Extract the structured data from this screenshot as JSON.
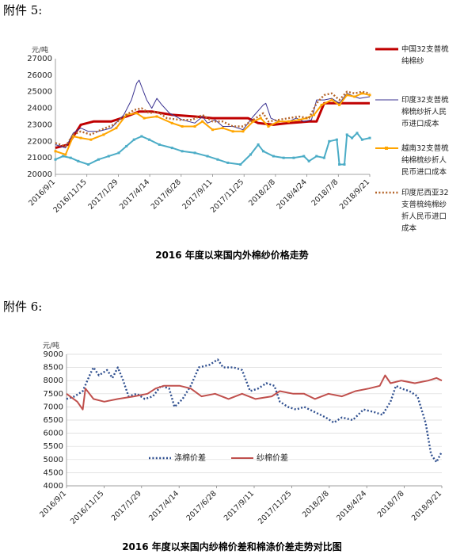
{
  "headings": {
    "attach5": "附件 5:",
    "attach6": "附件 6:"
  },
  "captions": {
    "fig1": "2016 年度以来国内外棉纱价格走势",
    "fig2": "2016 年度以来国内纱棉价差和棉涤价差走势对比图"
  },
  "chart_data": [
    {
      "type": "line",
      "title": "2016 年度以来国内外棉纱价格走势",
      "ylabel": "元/吨",
      "ylim": [
        20000,
        27000
      ],
      "yticks": [
        20000,
        21000,
        22000,
        23000,
        24000,
        25000,
        26000,
        27000
      ],
      "xlabels": [
        "2016/9/1",
        "2016/11/15",
        "2017/1/29",
        "2017/4/14",
        "2017/6/28",
        "2017/9/11",
        "2017/11/25",
        "2018/2/8",
        "2018/4/24",
        "2018/7/8",
        "2018/9/21"
      ],
      "legend_position": "right",
      "series": [
        {
          "name": "中国32支普梳纯棉纱",
          "color": "#c00000",
          "style": "solid-thick",
          "points": [
            [
              0,
              21600
            ],
            [
              5,
              21800
            ],
            [
              10,
              23000
            ],
            [
              15,
              23200
            ],
            [
              22,
              23200
            ],
            [
              28,
              23500
            ],
            [
              33,
              23800
            ],
            [
              38,
              23800
            ],
            [
              46,
              23600
            ],
            [
              55,
              23500
            ],
            [
              62,
              23400
            ],
            [
              70,
              23400
            ],
            [
              76,
              23400
            ],
            [
              80,
              23100
            ],
            [
              86,
              23000
            ],
            [
              92,
              23100
            ],
            [
              100,
              23200
            ],
            [
              103,
              23200
            ],
            [
              106,
              24300
            ],
            [
              110,
              24300
            ],
            [
              118,
              24300
            ],
            [
              124,
              24300
            ]
          ]
        },
        {
          "name": "印度32支普梳纯棉梳纱折人民币进口成本",
          "color": "#3b3391",
          "style": "solid-thin",
          "points": [
            [
              0,
              21800
            ],
            [
              4,
              21600
            ],
            [
              7,
              22500
            ],
            [
              10,
              22800
            ],
            [
              13,
              22600
            ],
            [
              17,
              22600
            ],
            [
              22,
              22800
            ],
            [
              27,
              23600
            ],
            [
              30,
              24500
            ],
            [
              32,
              25500
            ],
            [
              33,
              25700
            ],
            [
              34,
              25300
            ],
            [
              36,
              24500
            ],
            [
              38,
              24000
            ],
            [
              40,
              24600
            ],
            [
              42,
              24200
            ],
            [
              45,
              23700
            ],
            [
              50,
              23300
            ],
            [
              55,
              23100
            ],
            [
              58,
              23500
            ],
            [
              60,
              23100
            ],
            [
              63,
              23300
            ],
            [
              66,
              22900
            ],
            [
              70,
              22900
            ],
            [
              74,
              22700
            ],
            [
              78,
              23500
            ],
            [
              82,
              24200
            ],
            [
              83,
              24300
            ],
            [
              85,
              23400
            ],
            [
              88,
              23200
            ],
            [
              92,
              23200
            ],
            [
              95,
              23400
            ],
            [
              98,
              23200
            ],
            [
              101,
              23300
            ],
            [
              103,
              24500
            ],
            [
              106,
              24500
            ],
            [
              109,
              24600
            ],
            [
              112,
              24300
            ],
            [
              115,
              24900
            ],
            [
              118,
              24700
            ],
            [
              120,
              24600
            ],
            [
              124,
              24700
            ]
          ]
        },
        {
          "name": "越南32支普梳纯棉梳纱折人民币进口成本",
          "color": "#ffa500",
          "style": "solid-markers",
          "points": [
            [
              0,
              21400
            ],
            [
              4,
              21200
            ],
            [
              7,
              22300
            ],
            [
              10,
              22200
            ],
            [
              14,
              22100
            ],
            [
              19,
              22400
            ],
            [
              24,
              22800
            ],
            [
              28,
              23600
            ],
            [
              32,
              23700
            ],
            [
              35,
              23400
            ],
            [
              40,
              23500
            ],
            [
              46,
              23100
            ],
            [
              50,
              22900
            ],
            [
              55,
              22900
            ],
            [
              58,
              23200
            ],
            [
              62,
              22700
            ],
            [
              66,
              22800
            ],
            [
              70,
              22600
            ],
            [
              74,
              22600
            ],
            [
              78,
              23200
            ],
            [
              81,
              23400
            ],
            [
              84,
              22900
            ],
            [
              88,
              23200
            ],
            [
              92,
              23200
            ],
            [
              96,
              23300
            ],
            [
              99,
              23400
            ],
            [
              102,
              23600
            ],
            [
              105,
              24200
            ],
            [
              109,
              24500
            ],
            [
              112,
              24200
            ],
            [
              115,
              24800
            ],
            [
              118,
              24700
            ],
            [
              121,
              24900
            ],
            [
              124,
              24800
            ]
          ]
        },
        {
          "name": "印度尼西亚32支普梳纯棉纱折人民币进口成本",
          "color": "#b5652a",
          "style": "dotted",
          "points": [
            [
              0,
              21900
            ],
            [
              4,
              21700
            ],
            [
              7,
              22400
            ],
            [
              10,
              22600
            ],
            [
              14,
              22400
            ],
            [
              18,
              22700
            ],
            [
              23,
              23000
            ],
            [
              27,
              23500
            ],
            [
              31,
              23900
            ],
            [
              34,
              24000
            ],
            [
              37,
              23700
            ],
            [
              40,
              23800
            ],
            [
              44,
              23400
            ],
            [
              49,
              23300
            ],
            [
              54,
              23300
            ],
            [
              58,
              23600
            ],
            [
              62,
              23200
            ],
            [
              66,
              23200
            ],
            [
              70,
              22900
            ],
            [
              74,
              22900
            ],
            [
              78,
              23300
            ],
            [
              82,
              23700
            ],
            [
              84,
              23200
            ],
            [
              88,
              23300
            ],
            [
              92,
              23400
            ],
            [
              96,
              23500
            ],
            [
              100,
              23400
            ],
            [
              103,
              24300
            ],
            [
              106,
              24800
            ],
            [
              109,
              24900
            ],
            [
              112,
              24500
            ],
            [
              115,
              25000
            ],
            [
              118,
              24900
            ],
            [
              121,
              25000
            ],
            [
              124,
              24900
            ]
          ]
        },
        {
          "name": "",
          "color": "#4bacc6",
          "style": "solid-markers",
          "points": [
            [
              0,
              20900
            ],
            [
              3,
              21100
            ],
            [
              6,
              21000
            ],
            [
              9,
              20800
            ],
            [
              13,
              20600
            ],
            [
              17,
              20900
            ],
            [
              21,
              21100
            ],
            [
              25,
              21300
            ],
            [
              28,
              21700
            ],
            [
              31,
              22100
            ],
            [
              34,
              22300
            ],
            [
              37,
              22100
            ],
            [
              41,
              21800
            ],
            [
              46,
              21600
            ],
            [
              50,
              21400
            ],
            [
              55,
              21300
            ],
            [
              60,
              21100
            ],
            [
              64,
              20900
            ],
            [
              68,
              20700
            ],
            [
              73,
              20600
            ],
            [
              77,
              21200
            ],
            [
              80,
              21800
            ],
            [
              82,
              21400
            ],
            [
              86,
              21100
            ],
            [
              90,
              21000
            ],
            [
              94,
              21000
            ],
            [
              98,
              21100
            ],
            [
              100,
              20800
            ],
            [
              103,
              21100
            ],
            [
              106,
              21000
            ],
            [
              108,
              22000
            ],
            [
              111,
              22100
            ],
            [
              112,
              20600
            ],
            [
              114,
              20600
            ],
            [
              115,
              22400
            ],
            [
              117,
              22200
            ],
            [
              119,
              22500
            ],
            [
              121,
              22100
            ],
            [
              124,
              22200
            ]
          ]
        }
      ]
    },
    {
      "type": "line",
      "title": "2016 年度以来国内纱棉价差和棉涤价差走势对比图",
      "ylabel": "元/吨",
      "ylim": [
        4000,
        9000
      ],
      "yticks": [
        4000,
        4500,
        5000,
        5500,
        6000,
        6500,
        7000,
        7500,
        8000,
        8500,
        9000
      ],
      "xlabels": [
        "2016/9/1",
        "2016/11/15",
        "2017/1/29",
        "2017/4/14",
        "2017/6/28",
        "2017/9/11",
        "2017/11/25",
        "2018/2/8",
        "2018/4/24",
        "2018/7/8",
        "2018/9/21"
      ],
      "legend_position": "bottom-left",
      "series": [
        {
          "name": "涤棉价差",
          "color": "#2f4f8f",
          "style": "dotted",
          "points": [
            [
              0,
              7300
            ],
            [
              3,
              7400
            ],
            [
              6,
              7600
            ],
            [
              9,
              8300
            ],
            [
              10,
              8500
            ],
            [
              12,
              8200
            ],
            [
              15,
              8400
            ],
            [
              17,
              8100
            ],
            [
              19,
              8500
            ],
            [
              21,
              8000
            ],
            [
              23,
              7400
            ],
            [
              26,
              7500
            ],
            [
              29,
              7300
            ],
            [
              32,
              7400
            ],
            [
              35,
              7800
            ],
            [
              38,
              7700
            ],
            [
              40,
              7000
            ],
            [
              43,
              7300
            ],
            [
              46,
              7800
            ],
            [
              49,
              8500
            ],
            [
              53,
              8600
            ],
            [
              56,
              8800
            ],
            [
              58,
              8500
            ],
            [
              62,
              8500
            ],
            [
              65,
              8400
            ],
            [
              68,
              7600
            ],
            [
              71,
              7700
            ],
            [
              74,
              7900
            ],
            [
              77,
              7800
            ],
            [
              79,
              7200
            ],
            [
              82,
              7000
            ],
            [
              85,
              6900
            ],
            [
              88,
              7000
            ],
            [
              92,
              6800
            ],
            [
              96,
              6600
            ],
            [
              99,
              6400
            ],
            [
              102,
              6600
            ],
            [
              106,
              6500
            ],
            [
              110,
              6900
            ],
            [
              114,
              6800
            ],
            [
              117,
              6700
            ],
            [
              120,
              7200
            ],
            [
              122,
              7800
            ],
            [
              124,
              7700
            ],
            [
              127,
              7600
            ],
            [
              130,
              7400
            ],
            [
              133,
              6400
            ],
            [
              135,
              5200
            ],
            [
              137,
              4900
            ],
            [
              139,
              5300
            ]
          ]
        },
        {
          "name": "纱棉价差",
          "color": "#c0504d",
          "style": "solid",
          "points": [
            [
              0,
              7500
            ],
            [
              4,
              7200
            ],
            [
              6,
              6900
            ],
            [
              7,
              7700
            ],
            [
              10,
              7300
            ],
            [
              14,
              7200
            ],
            [
              19,
              7300
            ],
            [
              25,
              7400
            ],
            [
              30,
              7500
            ],
            [
              33,
              7700
            ],
            [
              36,
              7800
            ],
            [
              42,
              7800
            ],
            [
              46,
              7700
            ],
            [
              50,
              7400
            ],
            [
              55,
              7500
            ],
            [
              60,
              7300
            ],
            [
              65,
              7500
            ],
            [
              70,
              7300
            ],
            [
              76,
              7400
            ],
            [
              79,
              7600
            ],
            [
              84,
              7500
            ],
            [
              88,
              7500
            ],
            [
              92,
              7300
            ],
            [
              97,
              7500
            ],
            [
              102,
              7400
            ],
            [
              107,
              7600
            ],
            [
              112,
              7700
            ],
            [
              116,
              7800
            ],
            [
              118,
              8200
            ],
            [
              120,
              7900
            ],
            [
              124,
              8000
            ],
            [
              129,
              7900
            ],
            [
              134,
              8000
            ],
            [
              137,
              8100
            ],
            [
              139,
              8000
            ]
          ]
        }
      ]
    }
  ]
}
